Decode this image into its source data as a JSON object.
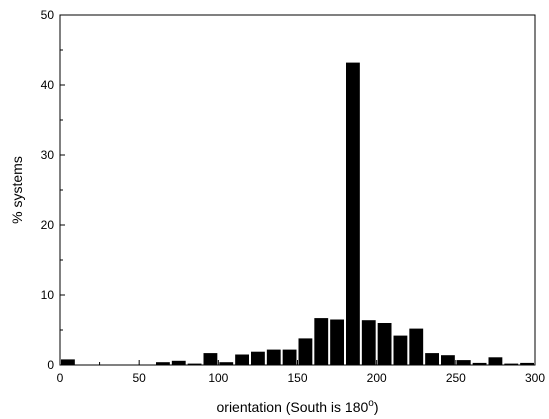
{
  "chart_data": {
    "type": "bar",
    "xlabel": "orientation (South is 180",
    "xlabel_superscript": "o",
    "xlabel_suffix": ")",
    "ylabel": "% systems",
    "xlim": [
      0,
      300
    ],
    "ylim": [
      0,
      50
    ],
    "bin_width": 10,
    "x_ticks": [
      0,
      50,
      100,
      150,
      200,
      250,
      300
    ],
    "y_ticks": [
      0,
      10,
      20,
      30,
      40,
      50
    ],
    "bar_color": "#000000",
    "grid": false,
    "legend": "none",
    "bins": [
      {
        "start": 0,
        "value": 0.8
      },
      {
        "start": 60,
        "value": 0.4
      },
      {
        "start": 70,
        "value": 0.6
      },
      {
        "start": 80,
        "value": 0.2
      },
      {
        "start": 90,
        "value": 1.7
      },
      {
        "start": 100,
        "value": 0.4
      },
      {
        "start": 110,
        "value": 1.5
      },
      {
        "start": 120,
        "value": 1.9
      },
      {
        "start": 130,
        "value": 2.2
      },
      {
        "start": 140,
        "value": 2.2
      },
      {
        "start": 150,
        "value": 3.8
      },
      {
        "start": 160,
        "value": 6.7
      },
      {
        "start": 170,
        "value": 6.5
      },
      {
        "start": 180,
        "value": 43.2
      },
      {
        "start": 190,
        "value": 6.4
      },
      {
        "start": 200,
        "value": 6.0
      },
      {
        "start": 210,
        "value": 4.2
      },
      {
        "start": 220,
        "value": 5.2
      },
      {
        "start": 230,
        "value": 1.7
      },
      {
        "start": 240,
        "value": 1.4
      },
      {
        "start": 250,
        "value": 0.7
      },
      {
        "start": 260,
        "value": 0.3
      },
      {
        "start": 270,
        "value": 1.1
      },
      {
        "start": 280,
        "value": 0.2
      },
      {
        "start": 290,
        "value": 0.3
      }
    ]
  }
}
